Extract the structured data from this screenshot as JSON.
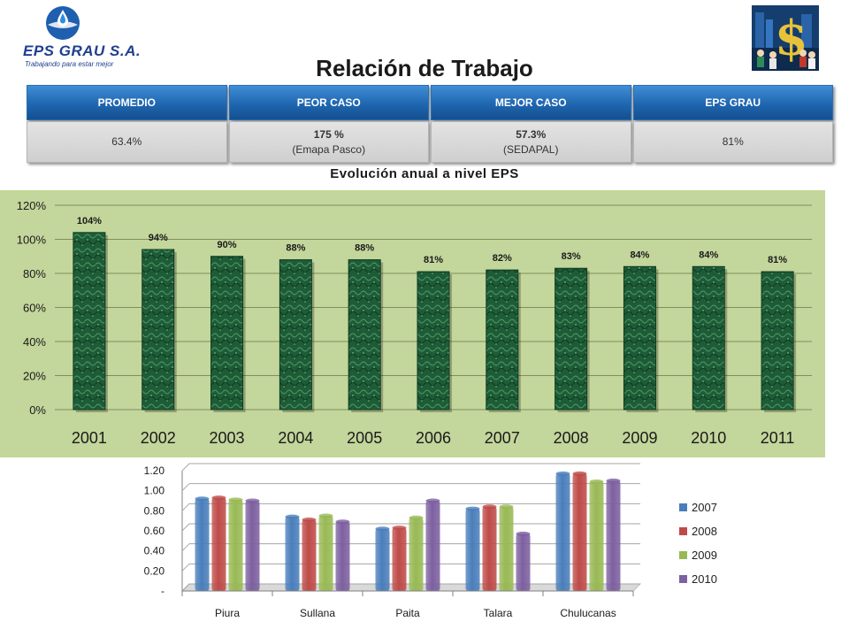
{
  "brand": {
    "name": "EPS GRAU S.A.",
    "tagline": "Trabajando para estar mejor"
  },
  "page": {
    "title": "Relación de Trabajo"
  },
  "kpi_table": {
    "headers": [
      "PROMEDIO",
      "PEOR CASO",
      "MEJOR CASO",
      "EPS GRAU"
    ],
    "values": [
      {
        "main": "63.4%",
        "sub": ""
      },
      {
        "main": "175 %",
        "sub": "(Emapa Pasco)"
      },
      {
        "main": "57.3%",
        "sub": "(SEDAPAL)"
      },
      {
        "main": "81%",
        "sub": ""
      }
    ]
  },
  "chart_data": [
    {
      "type": "bar",
      "title": "Evolución anual a nivel EPS",
      "categories": [
        "2001",
        "2002",
        "2003",
        "2004",
        "2005",
        "2006",
        "2007",
        "2008",
        "2009",
        "2010",
        "2011"
      ],
      "values": [
        104,
        94,
        90,
        88,
        88,
        81,
        82,
        83,
        84,
        84,
        81
      ],
      "data_labels": [
        "104%",
        "94%",
        "90%",
        "88%",
        "88%",
        "81%",
        "82%",
        "83%",
        "84%",
        "84%",
        "81%"
      ],
      "y_ticks": [
        "0%",
        "20%",
        "40%",
        "60%",
        "80%",
        "100%",
        "120%"
      ],
      "ylim": [
        0,
        120
      ],
      "xlabel": "",
      "ylabel": "",
      "grid": true,
      "background": "#c3d69b",
      "bar_color": "#1d5a35"
    },
    {
      "type": "bar",
      "categories": [
        "Piura",
        "Sullana",
        "Paita",
        "Talara",
        "Chulucanas"
      ],
      "series": [
        {
          "name": "2007",
          "color": "#4a7ebb",
          "values": [
            0.92,
            0.74,
            0.62,
            0.82,
            1.17
          ]
        },
        {
          "name": "2008",
          "color": "#be4b48",
          "values": [
            0.93,
            0.71,
            0.63,
            0.84,
            1.17
          ]
        },
        {
          "name": "2009",
          "color": "#98b954",
          "values": [
            0.91,
            0.75,
            0.73,
            0.84,
            1.09
          ]
        },
        {
          "name": "2010",
          "color": "#7d60a0",
          "values": [
            0.9,
            0.69,
            0.9,
            0.57,
            1.1
          ]
        }
      ],
      "y_ticks": [
        "-",
        "0.20",
        "0.40",
        "0.60",
        "0.80",
        "1.00",
        "1.20"
      ],
      "ylim": [
        0,
        1.2
      ],
      "xlabel": "",
      "ylabel": "",
      "grid": true,
      "legend_position": "right"
    }
  ]
}
